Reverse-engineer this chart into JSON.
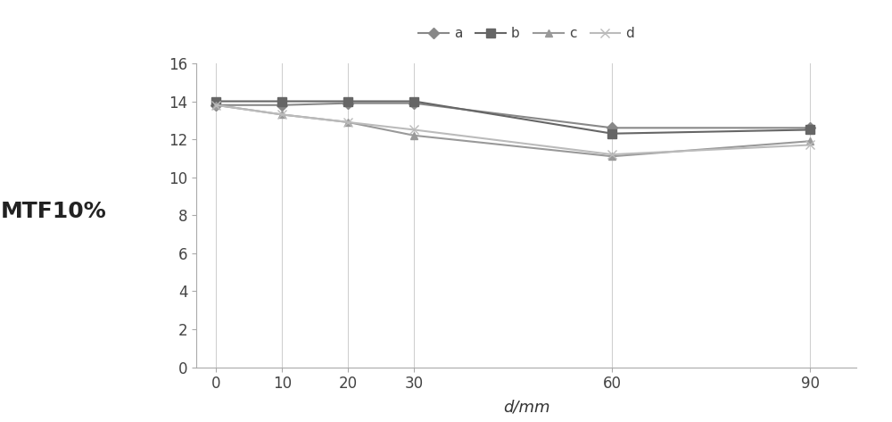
{
  "x": [
    0,
    10,
    20,
    30,
    60,
    90
  ],
  "series": {
    "a": [
      13.8,
      13.8,
      13.9,
      13.9,
      12.6,
      12.6
    ],
    "b": [
      14.0,
      14.0,
      14.0,
      14.0,
      12.3,
      12.5
    ],
    "c": [
      13.8,
      13.3,
      12.9,
      12.2,
      11.1,
      11.9
    ],
    "d": [
      13.8,
      13.3,
      12.9,
      12.5,
      11.2,
      11.7
    ]
  },
  "markers": {
    "a": "D",
    "b": "s",
    "c": "^",
    "d": "x"
  },
  "colors": {
    "a": "#888888",
    "b": "#666666",
    "c": "#999999",
    "d": "#bbbbbb"
  },
  "line_widths": {
    "a": 1.5,
    "b": 1.5,
    "c": 1.5,
    "d": 1.5
  },
  "marker_sizes": {
    "a": 6,
    "b": 7,
    "c": 6,
    "d": 7
  },
  "xlabel": "d/mm",
  "ylabel": "MTF10%",
  "ylim": [
    0,
    16
  ],
  "yticks": [
    0,
    2,
    4,
    6,
    8,
    10,
    12,
    14,
    16
  ],
  "xticks": [
    0,
    10,
    20,
    30,
    60,
    90
  ],
  "grid_color": "#d0d0d0",
  "background_color": "#ffffff",
  "xlabel_fontsize": 13,
  "ylabel_fontsize": 18,
  "tick_fontsize": 12,
  "legend_fontsize": 11
}
